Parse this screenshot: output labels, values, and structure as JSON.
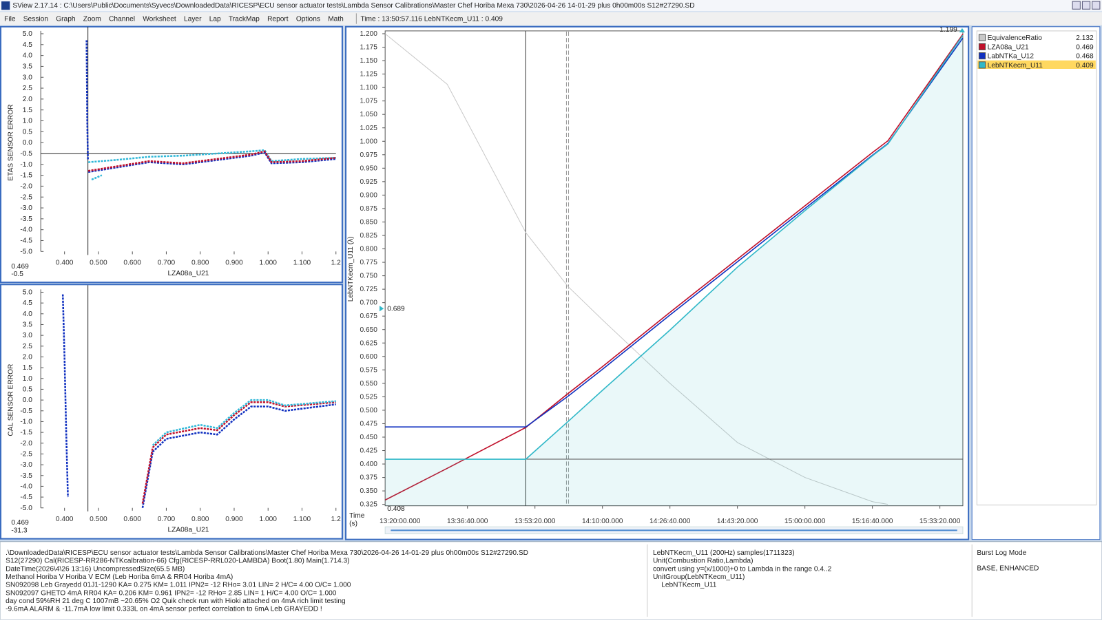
{
  "window": {
    "title": "SView 2.17.14  :  C:\\Users\\Public\\Documents\\Syvecs\\DownloadedData\\RICESP\\ECU sensor actuator tests\\Lambda Sensor Calibrations\\Master Chef Horiba Mexa 730\\2026-04-26 14-01-29 plus 0h00m00s S12#27290.SD"
  },
  "menu": [
    "File",
    "Session",
    "Graph",
    "Zoom",
    "Channel",
    "Worksheet",
    "Layer",
    "Lap",
    "TrackMap",
    "Report",
    "Options",
    "Math"
  ],
  "readout": "Time : 13:50:57.116   LebNTKecm_U11 : 0.409",
  "scatter_axes": {
    "xlim": [
      0.33,
      1.2
    ],
    "xticks": [
      {
        "value": 0.4,
        "label": "0.400"
      },
      {
        "value": 0.5,
        "label": "0.500"
      },
      {
        "value": 0.6,
        "label": "0.600"
      },
      {
        "value": 0.7,
        "label": "0.700"
      },
      {
        "value": 0.8,
        "label": "0.800"
      },
      {
        "value": 0.9,
        "label": "0.900"
      },
      {
        "value": 1,
        "label": "1.000"
      },
      {
        "value": 1.1,
        "label": "1.100"
      },
      1.2
    ],
    "ylim": [
      -5,
      5
    ],
    "yticks": [
      {
        "value": 5,
        "label": "5.0"
      },
      4.5,
      {
        "value": 4,
        "label": "4.0"
      },
      3.5,
      {
        "value": 3,
        "label": "3.0"
      },
      2.5,
      {
        "value": 2,
        "label": "2.0"
      },
      1.5,
      {
        "value": 1,
        "label": "1.0"
      },
      0.5,
      {
        "value": 0,
        "label": "0.0"
      },
      -0.5,
      {
        "value": -1,
        "label": "-1.0"
      },
      -1.5,
      {
        "value": -2,
        "label": "-2.0"
      },
      -2.5,
      {
        "value": -3,
        "label": "-3.0"
      },
      -3.5,
      {
        "value": -4,
        "label": "-4.0"
      },
      -4.5,
      {
        "value": -5,
        "label": "-5.0"
      }
    ]
  },
  "scatter_plots": [
    {
      "ylabel": "ETAS SENSOR ERROR",
      "xlabel": "LZA08a_U21",
      "label_color": "#e8a8b0",
      "cursor_x": 0.469,
      "cursor_y": -0.5,
      "series": [
        {
          "color": "#1030c0",
          "x": [
            0.465,
            0.467,
            0.469
          ],
          "y": [
            4.7,
            1.0,
            -0.8
          ]
        },
        {
          "color": "#30b8d8",
          "x": [
            0.47,
            0.55,
            0.65,
            0.75,
            0.85,
            0.95,
            0.99,
            1.01,
            1.1,
            1.2
          ],
          "y": [
            -0.9,
            -0.8,
            -0.65,
            -0.6,
            -0.5,
            -0.4,
            -0.35,
            -0.85,
            -0.75,
            -0.7
          ]
        },
        {
          "color": "#1030c0",
          "x": [
            0.47,
            0.55,
            0.65,
            0.75,
            0.85,
            0.95,
            0.99,
            1.01,
            1.1,
            1.2
          ],
          "y": [
            -1.35,
            -1.15,
            -0.9,
            -1.0,
            -0.8,
            -0.6,
            -0.45,
            -0.95,
            -0.9,
            -0.75
          ]
        },
        {
          "color": "#c0102a",
          "x": [
            0.47,
            0.55,
            0.65,
            0.75,
            0.85,
            0.95,
            0.99,
            1.01,
            1.1,
            1.2
          ],
          "y": [
            -1.3,
            -1.1,
            -0.85,
            -0.95,
            -0.75,
            -0.55,
            -0.4,
            -0.9,
            -0.85,
            -0.7
          ]
        },
        {
          "color": "#30b8d8",
          "x": [
            0.48,
            0.51
          ],
          "y": [
            -1.7,
            -1.5
          ]
        }
      ]
    },
    {
      "ylabel": "CAL SENSOR ERROR",
      "xlabel": "LZA08a_U21",
      "label_color": "#90c8e0",
      "cursor_x": 0.469,
      "cursor_y": -31.3,
      "series": [
        {
          "color": "#1030c0",
          "x": [
            0.395,
            0.4,
            0.405,
            0.41
          ],
          "y": [
            4.9,
            2.0,
            -1.5,
            -4.5
          ]
        },
        {
          "color": "#1030c0",
          "x": [
            0.63,
            0.66,
            0.7,
            0.8,
            0.85,
            0.9,
            0.95,
            1.0,
            1.05,
            1.2
          ],
          "y": [
            -5,
            -2.4,
            -1.8,
            -1.5,
            -1.6,
            -0.9,
            -0.3,
            -0.3,
            -0.5,
            -0.2
          ]
        },
        {
          "color": "#c0102a",
          "x": [
            0.63,
            0.66,
            0.7,
            0.8,
            0.85,
            0.9,
            0.95,
            1.0,
            1.05,
            1.2
          ],
          "y": [
            -4.8,
            -2.2,
            -1.6,
            -1.3,
            -1.4,
            -0.7,
            -0.1,
            -0.1,
            -0.3,
            -0.1
          ]
        },
        {
          "color": "#30b8d8",
          "x": [
            0.66,
            0.7,
            0.8,
            0.85,
            0.9,
            0.95,
            1.0,
            1.05,
            1.2
          ],
          "y": [
            -2.1,
            -1.5,
            -1.15,
            -1.3,
            -0.6,
            0.0,
            0.0,
            -0.25,
            -0.05
          ]
        }
      ]
    }
  ],
  "chart": {
    "type": "line",
    "ylabel": "LebNTKecm_U11 (λ)",
    "xlabel": [
      "Time",
      "(s)"
    ],
    "xlim": [
      -220,
      8340
    ],
    "xticks": [
      {
        "value": 0,
        "label": "13:20:00.000"
      },
      {
        "value": 1000,
        "label": "13:36:40.000"
      },
      {
        "value": 2000,
        "label": "13:53:20.000"
      },
      {
        "value": 3000,
        "label": "14:10:00.000"
      },
      {
        "value": 4000,
        "label": "14:26:40.000"
      },
      {
        "value": 5000,
        "label": "14:43:20.000"
      },
      {
        "value": 6000,
        "label": "15:00:00.000"
      },
      {
        "value": 7000,
        "label": "15:16:40.000"
      },
      {
        "value": 8000,
        "label": "15:33:20.000"
      }
    ],
    "ylim": [
      0.325,
      1.2
    ],
    "yticks": [
      {
        "value": 1.2,
        "label": "1.200"
      },
      1.175,
      {
        "value": 1.15,
        "label": "1.150"
      },
      1.125,
      {
        "value": 1.1,
        "label": "1.100"
      },
      1.075,
      {
        "value": 1.05,
        "label": "1.050"
      },
      1.025,
      {
        "value": 1,
        "label": "1.000"
      },
      0.975,
      {
        "value": 0.95,
        "label": "0.950"
      },
      0.925,
      {
        "value": 0.9,
        "label": "0.900"
      },
      0.875,
      {
        "value": 0.85,
        "label": "0.850"
      },
      0.825,
      {
        "value": 0.8,
        "label": "0.800"
      },
      0.775,
      {
        "value": 0.75,
        "label": "0.750"
      },
      0.725,
      {
        "value": 0.7,
        "label": "0.700"
      },
      0.675,
      {
        "value": 0.65,
        "label": "0.650"
      },
      0.625,
      {
        "value": 0.6,
        "label": "0.600"
      },
      0.575,
      {
        "value": 0.55,
        "label": "0.550"
      },
      0.525,
      {
        "value": 0.5,
        "label": "0.500"
      },
      0.475,
      {
        "value": 0.45,
        "label": "0.450"
      },
      0.425,
      {
        "value": 0.4,
        "label": "0.400"
      },
      0.375,
      {
        "value": 0.35,
        "label": "0.350"
      },
      0.325
    ],
    "x": [
      -220,
      700,
      1865,
      2490,
      3000,
      4000,
      5000,
      6000,
      7000,
      7230,
      8340
    ],
    "series": [
      {
        "name": "EquivalenceRatio",
        "color": "#c8c8c8",
        "legend_value": 2.132,
        "values": [
          1.2,
          1.106,
          0.83,
          0.73,
          0.668,
          0.55,
          0.44,
          0.375,
          0.33,
          0.325,
          null
        ]
      },
      {
        "name": "LZA08a_U21",
        "color": "#c0102a",
        "legend_value": 0.469,
        "values": [
          0.333,
          0.392,
          0.468,
          0.531,
          0.581,
          0.682,
          0.781,
          0.88,
          0.979,
          1.001,
          1.199
        ]
      },
      {
        "name": "LabNTKa_U12",
        "color": "#1030c0",
        "legend_value": 0.468,
        "values": [
          0.469,
          0.469,
          0.469,
          0.526,
          0.576,
          0.677,
          0.776,
          0.875,
          0.974,
          0.996,
          1.192
        ]
      },
      {
        "name": "LebNTKecm_U11",
        "color": "#30b8c8",
        "legend_value": 0.409,
        "values": [
          0.409,
          0.409,
          0.409,
          0.479,
          0.537,
          0.649,
          0.766,
          0.871,
          0.973,
          0.995,
          1.197
        ]
      }
    ],
    "selected": 3,
    "markers": {
      "top": 1.199,
      "left": 0.689,
      "bottom": 0.408
    }
  },
  "info": {
    "left": [
      ".\\DownloadedData\\RICESP\\ECU sensor actuator tests\\Lambda Sensor Calibrations\\Master Chef Horiba Mexa 730\\2026-04-26 14-01-29 plus 0h00m00s S12#27290.SD",
      "S12(27290) Cal(RICESP-RR286-NTKcalbration-66) Cfg(RICESP-RRL020-LAMBDA) Boot(1.80) Main(1.714.3)",
      "DateTime(2026\\4\\26 13:16) UncompressedSize(65.5 MB)",
      "Methanol Horiba V Horiba V ECM (Leb Horiba 6mA & RR04 Horiba 4mA)",
      "SN092098 Leb Grayedd 01J1-1290 KA= 0.275 KM= 1.011 IPN2= -12 RHo= 3.01 LIN= 2 H/C= 4.00 O/C= 1.000",
      "SN092097 GHETO 4mA RR04 KA= 0.206 KM= 0.961 IPN2= -12 RHo= 2.85 LIN= 1 H/C= 4.00 O/C= 1.000",
      "day cond 59%RH 21 deg C 1007mB ~20.65% O2 Quik check run with Hioki attached on 4mA rich limit testing",
      "-9.6mA ALARM & -11.7mA low limit 0.333L on 4mA sensor perfect correlation to 6mA Leb GRAYEDD !"
    ],
    "middle": [
      "LebNTKecm_U11 (200Hz) samples(1711323)",
      "Unit(Combustion Ratio,Lambda)",
      "convert using y=(x/1000)+0 to Lambda in the range 0.4..2",
      "UnitGroup(LebNTKecm_U11)",
      "LebNTKecm_U11"
    ],
    "right": [
      "Burst Log Mode",
      "BASE, ENHANCED"
    ]
  }
}
